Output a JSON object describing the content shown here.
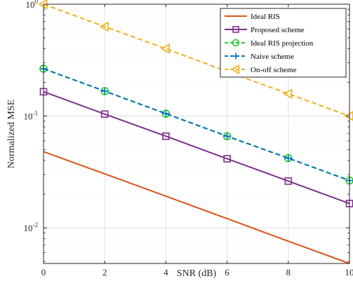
{
  "chart_data": {
    "type": "line",
    "xlabel": "SNR (dB)",
    "ylabel": "Normalized MSE",
    "x": [
      0,
      2,
      4,
      6,
      8,
      10
    ],
    "xlim": [
      0,
      10
    ],
    "x_ticks": [
      "0",
      "2",
      "4",
      "6",
      "8",
      "10"
    ],
    "yscale": "log",
    "ylim": [
      0.0048,
      1
    ],
    "y_ticks": [
      {
        "value": 0.01,
        "base": "10",
        "exp": "-2"
      },
      {
        "value": 0.1,
        "base": "10",
        "exp": "-1"
      },
      {
        "value": 1,
        "base": "10",
        "exp": "0"
      }
    ],
    "grid": true,
    "legend_position": "top-right",
    "series": [
      {
        "name": "Ideal RIS",
        "color": "#D95319",
        "dash": "solid",
        "marker": "none",
        "values": [
          0.048,
          0.0304,
          0.0192,
          0.0121,
          0.0076,
          0.0048
        ]
      },
      {
        "name": "Proposed scheme",
        "color": "#7E2F8E",
        "dash": "solid",
        "marker": "square",
        "values": [
          0.165,
          0.104,
          0.066,
          0.0415,
          0.0262,
          0.0165
        ]
      },
      {
        "name": "Ideal RIS projection",
        "color": "#22CC22",
        "dash": "dashed",
        "marker": "circle",
        "values": [
          0.265,
          0.167,
          0.105,
          0.066,
          0.042,
          0.0265
        ]
      },
      {
        "name": "Naive scheme",
        "color": "#0072BD",
        "dash": "dashed",
        "marker": "plus",
        "values": [
          0.265,
          0.167,
          0.105,
          0.066,
          0.042,
          0.0265
        ]
      },
      {
        "name": "On-off scheme",
        "color": "#EDB120",
        "dash": "dashed",
        "marker": "triangle-left",
        "values": [
          1.0,
          0.63,
          0.4,
          0.25,
          0.158,
          0.1
        ]
      }
    ]
  }
}
